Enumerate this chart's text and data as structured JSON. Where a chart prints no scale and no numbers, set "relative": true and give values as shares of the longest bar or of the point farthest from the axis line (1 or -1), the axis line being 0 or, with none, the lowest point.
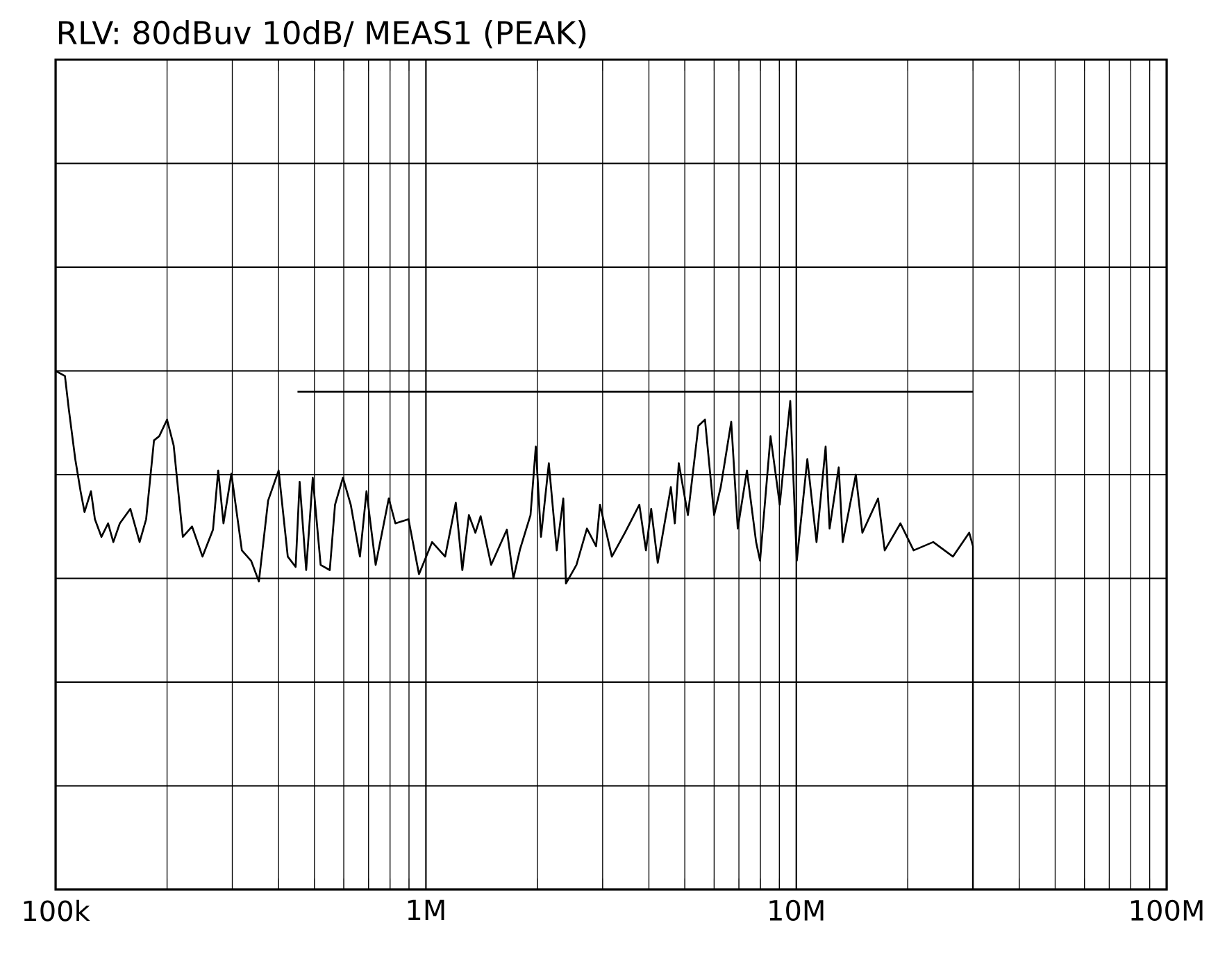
{
  "chart_data": {
    "type": "line",
    "title": "RLV:  80dBuv     10dB/    MEAS1 (PEAK)",
    "log": "x",
    "grid": true,
    "tick_labels": "x",
    "relative": true,
    "xlim": [
      100000,
      100000000
    ],
    "xticks": [
      {
        "value": 100000,
        "label": "100k"
      },
      {
        "value": 1000000,
        "label": "1M"
      },
      {
        "value": 10000000,
        "label": "10M"
      },
      {
        "value": 100000000,
        "label": "100M"
      }
    ],
    "series": [
      {
        "color": "#000000",
        "x": [
          450000,
          30000000
        ],
        "values": [
          0.96,
          0.96
        ]
      },
      {
        "color": "#000000",
        "x": [
          100000,
          106000,
          108500,
          113000,
          116800,
          119700,
          124600,
          127700,
          133000,
          138600,
          143200,
          149100,
          159200,
          168600,
          175600,
          184400,
          190500,
          200000,
          208400,
          220600,
          233600,
          249300,
          266100,
          274900,
          284000,
          298300,
          318400,
          337200,
          354000,
          374900,
          400200,
          423600,
          444800,
          456000,
          474900,
          494800,
          519600,
          550000,
          568300,
          596900,
          626600,
          663500,
          691100,
          731700,
          793800,
          827000,
          897300,
          957700,
          1039000,
          1127000,
          1204000,
          1254000,
          1306000,
          1360000,
          1405000,
          1500000,
          1654000,
          1723000,
          1795000,
          1916000,
          1980000,
          2045000,
          2147000,
          2255000,
          2349000,
          2388000,
          2549000,
          2721000,
          2880000,
          2951000,
          3177000,
          3447000,
          3770000,
          3927000,
          4057000,
          4226000,
          4585000,
          4699000,
          4816000,
          5098000,
          5441000,
          5668000,
          6001000,
          6252000,
          6674000,
          6950000,
          7358000,
          7790000,
          7983000,
          8521000,
          9023000,
          9632000,
          10030000,
          10710000,
          11340000,
          12000000,
          12300000,
          13020000,
          13350000,
          14480000,
          15080000,
          16630000,
          17330000,
          19110000,
          20740000,
          23430000,
          26490000,
          29300000,
          30000000,
          30000000
        ],
        "values": [
          1,
          0.99,
          0.928,
          0.83,
          0.768,
          0.728,
          0.768,
          0.714,
          0.68,
          0.706,
          0.67,
          0.706,
          0.734,
          0.67,
          0.714,
          0.866,
          0.874,
          0.906,
          0.856,
          0.68,
          0.7,
          0.642,
          0.694,
          0.808,
          0.706,
          0.802,
          0.654,
          0.634,
          0.594,
          0.75,
          0.808,
          0.642,
          0.622,
          0.786,
          0.616,
          0.794,
          0.626,
          0.616,
          0.742,
          0.794,
          0.742,
          0.642,
          0.768,
          0.626,
          0.754,
          0.706,
          0.714,
          0.608,
          0.67,
          0.642,
          0.746,
          0.616,
          0.722,
          0.688,
          0.72,
          0.626,
          0.694,
          0.6,
          0.656,
          0.722,
          0.854,
          0.68,
          0.822,
          0.654,
          0.754,
          0.59,
          0.626,
          0.696,
          0.662,
          0.742,
          0.642,
          0.688,
          0.742,
          0.654,
          0.734,
          0.63,
          0.776,
          0.706,
          0.822,
          0.722,
          0.894,
          0.906,
          0.722,
          0.776,
          0.902,
          0.696,
          0.808,
          0.67,
          0.634,
          0.874,
          0.742,
          0.942,
          0.634,
          0.83,
          0.67,
          0.854,
          0.696,
          0.814,
          0.67,
          0.8,
          0.688,
          0.754,
          0.654,
          0.706,
          0.654,
          0.67,
          0.642,
          0.688,
          0.662,
          0
        ]
      }
    ]
  }
}
